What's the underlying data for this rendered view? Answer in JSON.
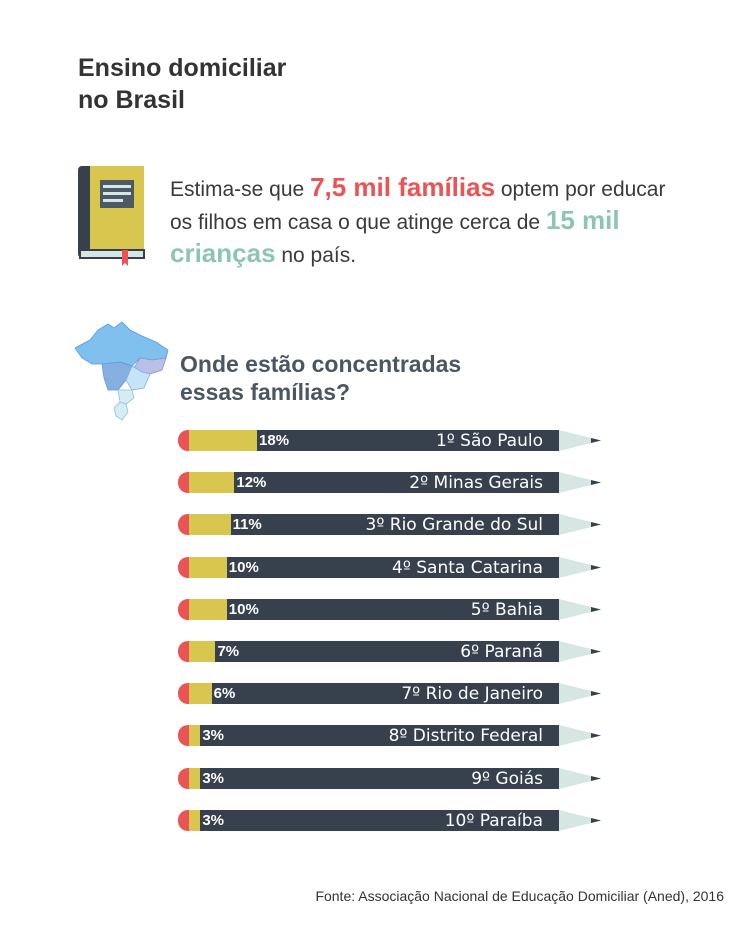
{
  "title": [
    "Ensino domiciliar",
    "no Brasil"
  ],
  "intro": {
    "p1": "Estima-se que ",
    "h1": "7,5 mil famílias",
    "p2": " optem por educar os filhos em casa o que atinge cerca de ",
    "h2": "15 mil crianças",
    "p3": " no país."
  },
  "subtitle": [
    "Onde estão concentradas",
    "essas famílias?"
  ],
  "colors": {
    "highlight_red": "#ea5455",
    "highlight_green": "#8cc5b5",
    "pencil_fill": "#d8c64f",
    "pencil_body": "#36414d",
    "eraser": "#ea5455",
    "tip": "#d6e6e2"
  },
  "icons": [
    "book-icon",
    "brazil-map-icon",
    "pencil-icon"
  ],
  "chart_data": {
    "type": "bar",
    "orientation": "horizontal",
    "categories": [
      "1º São Paulo",
      "2º Minas Gerais",
      "3º Rio Grande do Sul",
      "4º Santa Catarina",
      "5º Bahia",
      "6º Paraná",
      "7º Rio de Janeiro",
      "8º Distrito Federal",
      "9º Goiás",
      "10º Paraíba"
    ],
    "values": [
      18,
      12,
      11,
      10,
      10,
      7,
      6,
      3,
      3,
      3
    ],
    "value_labels": [
      "18%",
      "12%",
      "11%",
      "10%",
      "10%",
      "7%",
      "6%",
      "3%",
      "3%",
      "3%"
    ],
    "unit": "%"
  },
  "source": "Fonte: Associação Nacional de Educação Domiciliar (Aned), 2016"
}
